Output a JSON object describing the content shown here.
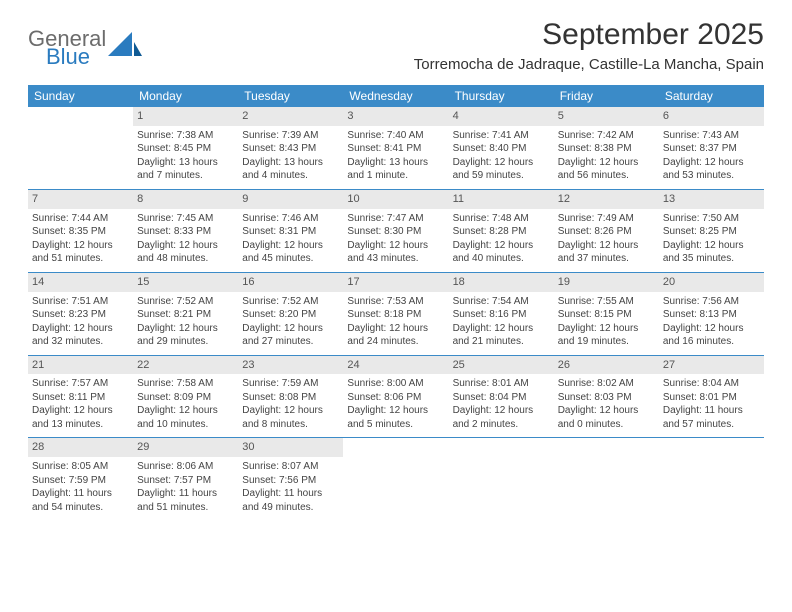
{
  "brand": {
    "general": "General",
    "blue": "Blue"
  },
  "header": {
    "month_title": "September 2025",
    "location": "Torremocha de Jadraque, Castille-La Mancha, Spain"
  },
  "colors": {
    "header_bar": "#3b8bc8",
    "daynum_bg": "#e9e9e9",
    "text": "#333333",
    "logo_gray": "#6c6c6c",
    "logo_blue": "#2a7bbf"
  },
  "weekdays": [
    "Sunday",
    "Monday",
    "Tuesday",
    "Wednesday",
    "Thursday",
    "Friday",
    "Saturday"
  ],
  "weeks": [
    [
      null,
      {
        "n": "1",
        "sunrise": "Sunrise: 7:38 AM",
        "sunset": "Sunset: 8:45 PM",
        "daylight": "Daylight: 13 hours and 7 minutes."
      },
      {
        "n": "2",
        "sunrise": "Sunrise: 7:39 AM",
        "sunset": "Sunset: 8:43 PM",
        "daylight": "Daylight: 13 hours and 4 minutes."
      },
      {
        "n": "3",
        "sunrise": "Sunrise: 7:40 AM",
        "sunset": "Sunset: 8:41 PM",
        "daylight": "Daylight: 13 hours and 1 minute."
      },
      {
        "n": "4",
        "sunrise": "Sunrise: 7:41 AM",
        "sunset": "Sunset: 8:40 PM",
        "daylight": "Daylight: 12 hours and 59 minutes."
      },
      {
        "n": "5",
        "sunrise": "Sunrise: 7:42 AM",
        "sunset": "Sunset: 8:38 PM",
        "daylight": "Daylight: 12 hours and 56 minutes."
      },
      {
        "n": "6",
        "sunrise": "Sunrise: 7:43 AM",
        "sunset": "Sunset: 8:37 PM",
        "daylight": "Daylight: 12 hours and 53 minutes."
      }
    ],
    [
      {
        "n": "7",
        "sunrise": "Sunrise: 7:44 AM",
        "sunset": "Sunset: 8:35 PM",
        "daylight": "Daylight: 12 hours and 51 minutes."
      },
      {
        "n": "8",
        "sunrise": "Sunrise: 7:45 AM",
        "sunset": "Sunset: 8:33 PM",
        "daylight": "Daylight: 12 hours and 48 minutes."
      },
      {
        "n": "9",
        "sunrise": "Sunrise: 7:46 AM",
        "sunset": "Sunset: 8:31 PM",
        "daylight": "Daylight: 12 hours and 45 minutes."
      },
      {
        "n": "10",
        "sunrise": "Sunrise: 7:47 AM",
        "sunset": "Sunset: 8:30 PM",
        "daylight": "Daylight: 12 hours and 43 minutes."
      },
      {
        "n": "11",
        "sunrise": "Sunrise: 7:48 AM",
        "sunset": "Sunset: 8:28 PM",
        "daylight": "Daylight: 12 hours and 40 minutes."
      },
      {
        "n": "12",
        "sunrise": "Sunrise: 7:49 AM",
        "sunset": "Sunset: 8:26 PM",
        "daylight": "Daylight: 12 hours and 37 minutes."
      },
      {
        "n": "13",
        "sunrise": "Sunrise: 7:50 AM",
        "sunset": "Sunset: 8:25 PM",
        "daylight": "Daylight: 12 hours and 35 minutes."
      }
    ],
    [
      {
        "n": "14",
        "sunrise": "Sunrise: 7:51 AM",
        "sunset": "Sunset: 8:23 PM",
        "daylight": "Daylight: 12 hours and 32 minutes."
      },
      {
        "n": "15",
        "sunrise": "Sunrise: 7:52 AM",
        "sunset": "Sunset: 8:21 PM",
        "daylight": "Daylight: 12 hours and 29 minutes."
      },
      {
        "n": "16",
        "sunrise": "Sunrise: 7:52 AM",
        "sunset": "Sunset: 8:20 PM",
        "daylight": "Daylight: 12 hours and 27 minutes."
      },
      {
        "n": "17",
        "sunrise": "Sunrise: 7:53 AM",
        "sunset": "Sunset: 8:18 PM",
        "daylight": "Daylight: 12 hours and 24 minutes."
      },
      {
        "n": "18",
        "sunrise": "Sunrise: 7:54 AM",
        "sunset": "Sunset: 8:16 PM",
        "daylight": "Daylight: 12 hours and 21 minutes."
      },
      {
        "n": "19",
        "sunrise": "Sunrise: 7:55 AM",
        "sunset": "Sunset: 8:15 PM",
        "daylight": "Daylight: 12 hours and 19 minutes."
      },
      {
        "n": "20",
        "sunrise": "Sunrise: 7:56 AM",
        "sunset": "Sunset: 8:13 PM",
        "daylight": "Daylight: 12 hours and 16 minutes."
      }
    ],
    [
      {
        "n": "21",
        "sunrise": "Sunrise: 7:57 AM",
        "sunset": "Sunset: 8:11 PM",
        "daylight": "Daylight: 12 hours and 13 minutes."
      },
      {
        "n": "22",
        "sunrise": "Sunrise: 7:58 AM",
        "sunset": "Sunset: 8:09 PM",
        "daylight": "Daylight: 12 hours and 10 minutes."
      },
      {
        "n": "23",
        "sunrise": "Sunrise: 7:59 AM",
        "sunset": "Sunset: 8:08 PM",
        "daylight": "Daylight: 12 hours and 8 minutes."
      },
      {
        "n": "24",
        "sunrise": "Sunrise: 8:00 AM",
        "sunset": "Sunset: 8:06 PM",
        "daylight": "Daylight: 12 hours and 5 minutes."
      },
      {
        "n": "25",
        "sunrise": "Sunrise: 8:01 AM",
        "sunset": "Sunset: 8:04 PM",
        "daylight": "Daylight: 12 hours and 2 minutes."
      },
      {
        "n": "26",
        "sunrise": "Sunrise: 8:02 AM",
        "sunset": "Sunset: 8:03 PM",
        "daylight": "Daylight: 12 hours and 0 minutes."
      },
      {
        "n": "27",
        "sunrise": "Sunrise: 8:04 AM",
        "sunset": "Sunset: 8:01 PM",
        "daylight": "Daylight: 11 hours and 57 minutes."
      }
    ],
    [
      {
        "n": "28",
        "sunrise": "Sunrise: 8:05 AM",
        "sunset": "Sunset: 7:59 PM",
        "daylight": "Daylight: 11 hours and 54 minutes."
      },
      {
        "n": "29",
        "sunrise": "Sunrise: 8:06 AM",
        "sunset": "Sunset: 7:57 PM",
        "daylight": "Daylight: 11 hours and 51 minutes."
      },
      {
        "n": "30",
        "sunrise": "Sunrise: 8:07 AM",
        "sunset": "Sunset: 7:56 PM",
        "daylight": "Daylight: 11 hours and 49 minutes."
      },
      null,
      null,
      null,
      null
    ]
  ]
}
